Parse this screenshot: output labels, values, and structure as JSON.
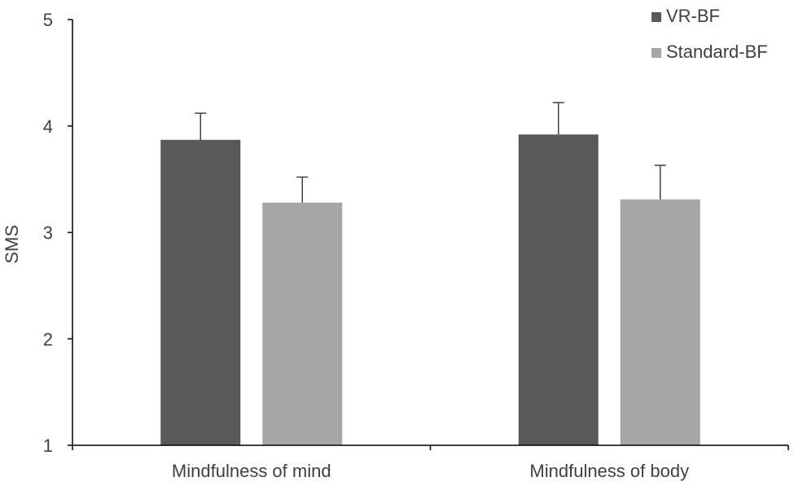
{
  "chart_data": {
    "type": "bar",
    "title": "",
    "xlabel": "",
    "ylabel": "SMS",
    "ylim": [
      1,
      5
    ],
    "yticks": [
      "1",
      "2",
      "3",
      "4",
      "5"
    ],
    "grid": false,
    "legend_position": "top-right",
    "categories": [
      "Mindfulness of mind",
      "Mindfulness of body"
    ],
    "series": [
      {
        "name": "VR-BF",
        "color": "#595959",
        "values": [
          3.87,
          3.92
        ],
        "errors": [
          0.25,
          0.3
        ]
      },
      {
        "name": "Standard-BF",
        "color": "#a6a6a6",
        "values": [
          3.28,
          3.31
        ],
        "errors": [
          0.24,
          0.32
        ]
      }
    ]
  }
}
